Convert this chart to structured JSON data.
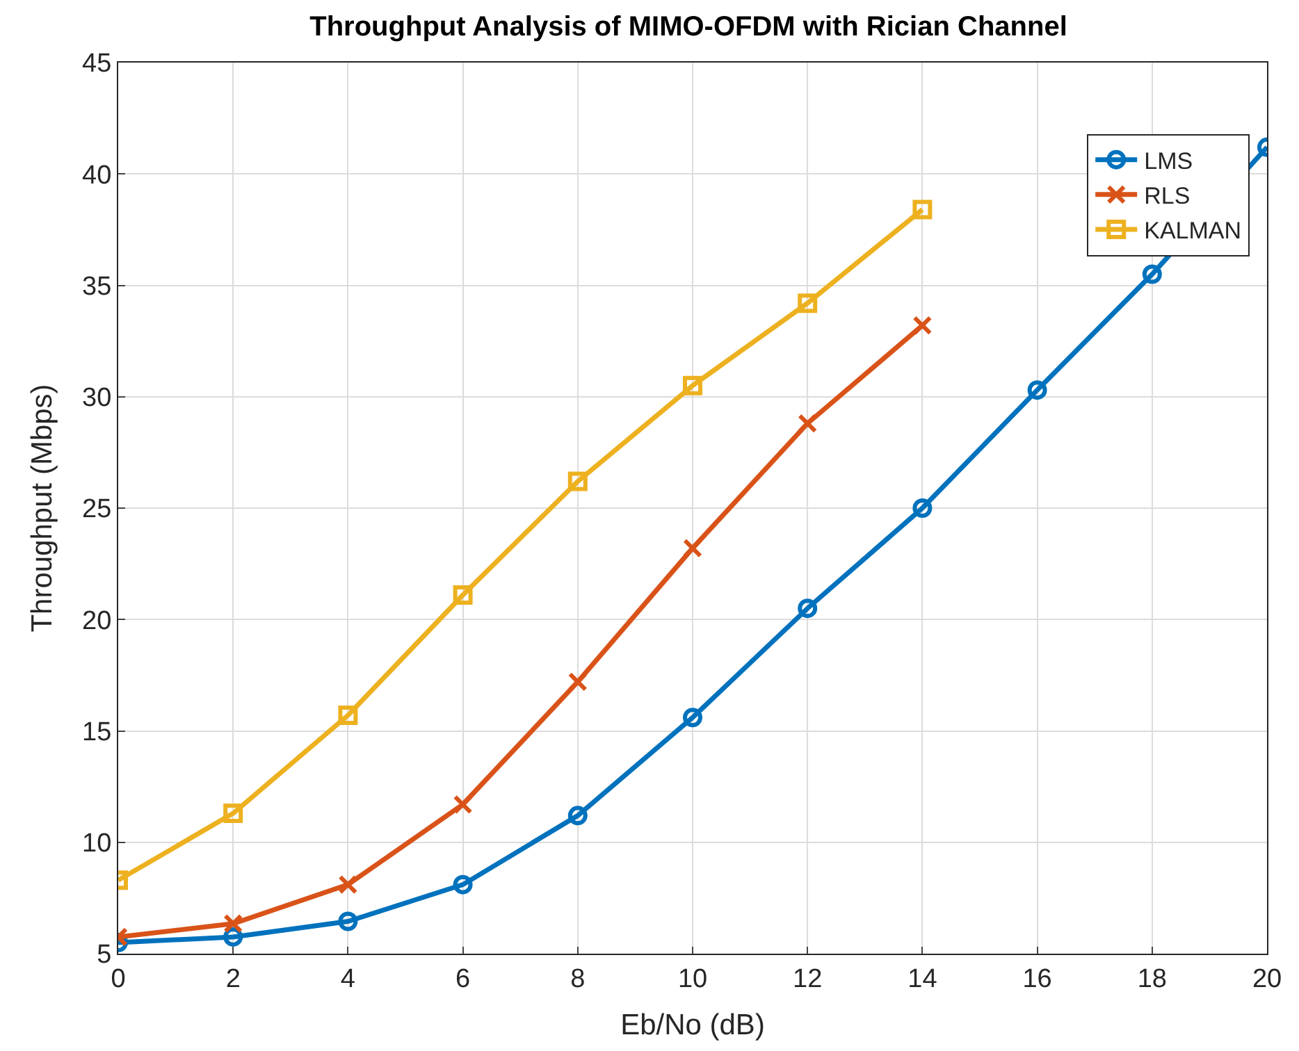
{
  "chart_data": {
    "type": "line",
    "title": "Throughput Analysis of MIMO-OFDM with Rician Channel",
    "xlabel": "Eb/No (dB)",
    "ylabel": "Throughput (Mbps)",
    "x": [
      0,
      2,
      4,
      6,
      8,
      10,
      12,
      14,
      16,
      18,
      20
    ],
    "series": [
      {
        "name": "LMS",
        "color": "#0072bd",
        "marker": "circle",
        "values": [
          5.5,
          5.75,
          6.45,
          8.1,
          11.2,
          15.6,
          20.5,
          25.0,
          30.3,
          35.5,
          41.2
        ]
      },
      {
        "name": "RLS",
        "color": "#d95319",
        "marker": "cross",
        "values": [
          5.75,
          6.35,
          8.1,
          11.7,
          17.2,
          23.2,
          28.8,
          33.2,
          null,
          null,
          null
        ]
      },
      {
        "name": "KALMAN",
        "color": "#edb120",
        "marker": "square",
        "values": [
          8.3,
          11.3,
          15.7,
          21.1,
          26.2,
          30.5,
          34.2,
          38.4,
          null,
          null,
          null
        ]
      }
    ],
    "xlim": [
      0,
      20
    ],
    "xticks": [
      0,
      2,
      4,
      6,
      8,
      10,
      12,
      14,
      16,
      18,
      20
    ],
    "ylim": [
      5,
      45
    ],
    "yticks": [
      5,
      10,
      15,
      20,
      25,
      30,
      35,
      40,
      45
    ],
    "grid": true,
    "legend": "top right",
    "line_style": "solid"
  }
}
